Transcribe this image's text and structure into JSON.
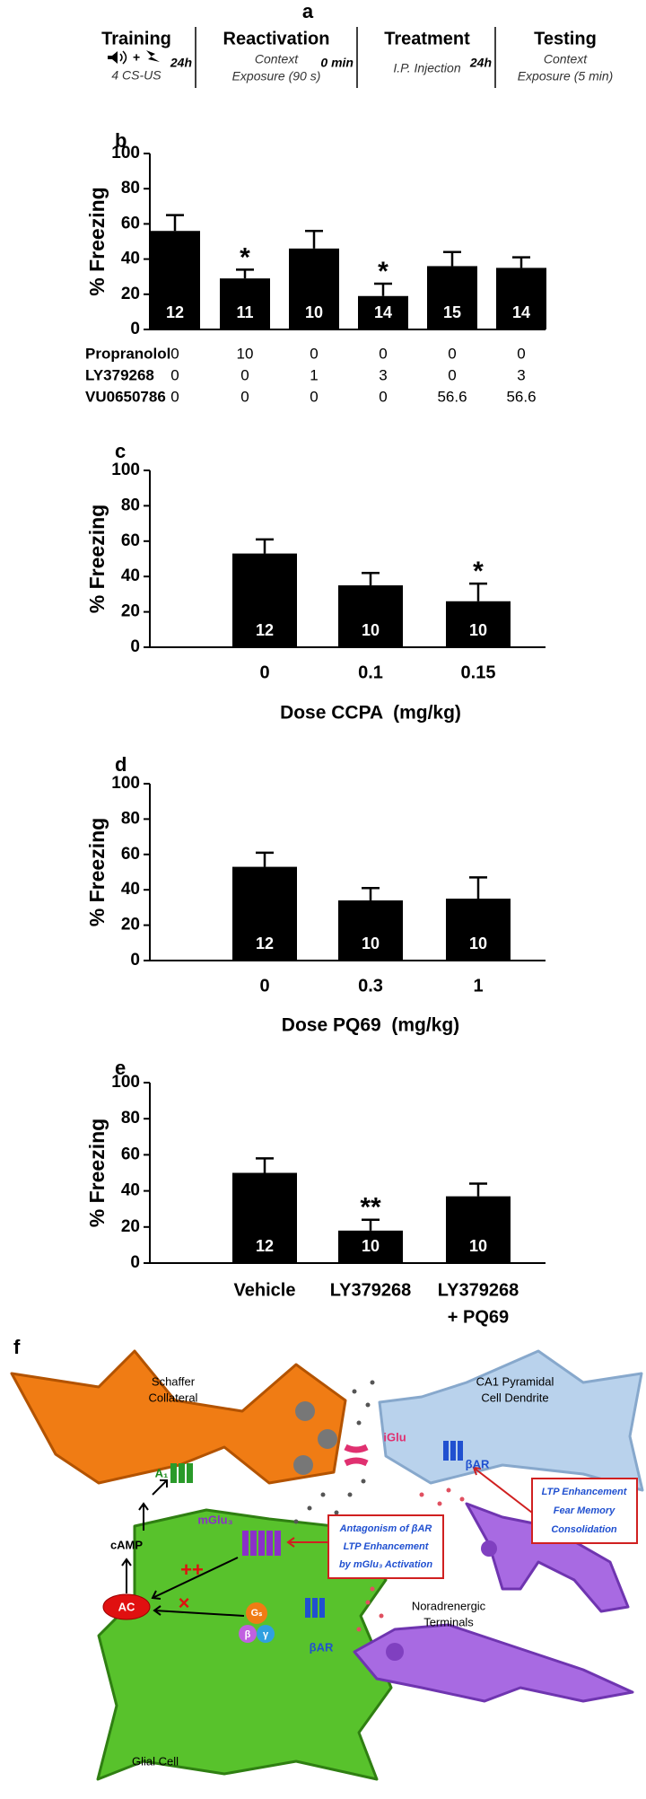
{
  "panel_a": {
    "label": "a",
    "stages": [
      {
        "title": "Training",
        "description": [
          "4 CS-US"
        ]
      },
      {
        "title": "Reactivation",
        "description": [
          "Context",
          "Exposure (90 s)"
        ]
      },
      {
        "title": "Treatment",
        "description": [
          "I.P. Injection"
        ]
      },
      {
        "title": "Testing",
        "description": [
          "Context",
          "Exposure (5 min)"
        ]
      }
    ],
    "intervals": [
      "24h",
      "0 min",
      "24h"
    ]
  },
  "chart_data": [
    {
      "type": "bar",
      "panel": "b",
      "ylabel": "% Freezing",
      "categories": [
        null,
        null,
        null,
        null,
        null,
        null
      ],
      "values": [
        56,
        29,
        46,
        19,
        36,
        35
      ],
      "errors": [
        9,
        5,
        10,
        7,
        8,
        6
      ],
      "n_labels": [
        12,
        11,
        10,
        14,
        15,
        14
      ],
      "annotations": [
        {
          "index": 1,
          "text": "*"
        },
        {
          "index": 3,
          "text": "*"
        }
      ],
      "dose_table": [
        {
          "name": "Propranolol",
          "values": [
            0,
            10,
            0,
            0,
            0,
            0
          ]
        },
        {
          "name": "LY379268",
          "values": [
            0,
            0,
            1,
            3,
            0,
            3
          ]
        },
        {
          "name": "VU0650786",
          "values": [
            0,
            0,
            0,
            0,
            56.6,
            56.6
          ]
        }
      ],
      "color": "#000000",
      "ylim": [
        0,
        100
      ],
      "yticks": [
        0,
        20,
        40,
        60,
        80,
        100
      ]
    },
    {
      "type": "bar",
      "panel": "c",
      "ylabel": "% Freezing",
      "xlabel": "Dose CCPA  (mg/kg)",
      "categories": [
        "0",
        "0.1",
        "0.15"
      ],
      "values": [
        53,
        35,
        26
      ],
      "errors": [
        8,
        7,
        10
      ],
      "n_labels": [
        12,
        10,
        10
      ],
      "annotations": [
        {
          "index": 2,
          "text": "*"
        }
      ],
      "color": "#000000",
      "ylim": [
        0,
        100
      ],
      "yticks": [
        0,
        20,
        40,
        60,
        80,
        100
      ]
    },
    {
      "type": "bar",
      "panel": "d",
      "ylabel": "% Freezing",
      "xlabel": "Dose PQ69  (mg/kg)",
      "categories": [
        "0",
        "0.3",
        "1"
      ],
      "values": [
        53,
        34,
        35
      ],
      "errors": [
        8,
        7,
        12
      ],
      "n_labels": [
        12,
        10,
        10
      ],
      "color": "#000000",
      "ylim": [
        0,
        100
      ],
      "yticks": [
        0,
        20,
        40,
        60,
        80,
        100
      ]
    },
    {
      "type": "bar",
      "panel": "e",
      "ylabel": "% Freezing",
      "categories": [
        [
          "Vehicle"
        ],
        [
          "LY379268"
        ],
        [
          "LY379268",
          "+ PQ69"
        ]
      ],
      "values": [
        50,
        18,
        37
      ],
      "errors": [
        8,
        6,
        7
      ],
      "n_labels": [
        12,
        10,
        10
      ],
      "annotations": [
        {
          "index": 1,
          "text": "**"
        }
      ],
      "color": "#000000",
      "ylim": [
        0,
        100
      ],
      "yticks": [
        0,
        20,
        40,
        60,
        80,
        100
      ]
    }
  ],
  "panel_f": {
    "label": "f",
    "schaffer": [
      "Schaffer",
      "Collateral"
    ],
    "ca1": [
      "CA1 Pyramidal",
      "Cell Dendrite"
    ],
    "iglu": "iGlu",
    "bar_neuron": "βAR",
    "ltp_box": [
      "LTP Enhancement",
      "Fear Memory",
      "Consolidation"
    ],
    "a1": "A₁",
    "mglu3": "mGlu₃",
    "antagonism_box": [
      "Antagonism of βAR",
      "LTP Enhancement",
      "by mGlu₃ Activation"
    ],
    "camp": "cAMP",
    "ac": "AC",
    "plusplus": "++",
    "cross": "×",
    "gs": "Gₛ",
    "beta": "β",
    "gamma": "γ",
    "bar_glial": "βAR",
    "noradrenergic": [
      "Noradrenergic",
      "Terminals"
    ],
    "glial": "Glial Cell"
  }
}
